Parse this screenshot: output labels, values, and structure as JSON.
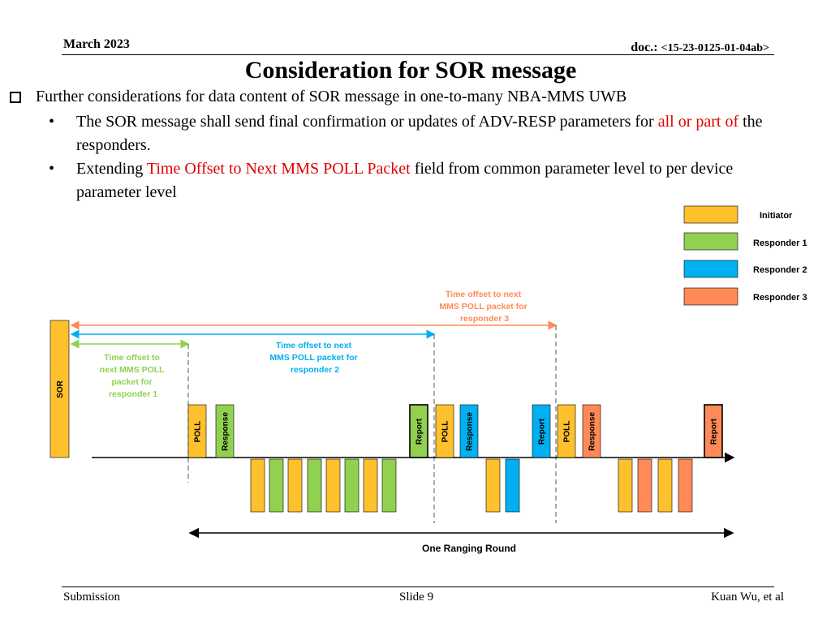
{
  "header": {
    "date": "March 2023",
    "doc_prefix": "doc.: ",
    "doc_id": "<15-23-0125-01-04ab>"
  },
  "title": "Consideration for SOR message",
  "body": {
    "point": "Further considerations for data content of SOR message in one-to-many NBA-MMS UWB",
    "sub1": {
      "pre": "The SOR message shall send final confirmation or updates of ADV-RESP parameters for ",
      "red": "all or part of",
      "post": " the responders."
    },
    "sub2": {
      "pre": "Extending ",
      "red": "Time Offset to Next MMS POLL Packet",
      "post": " field from common parameter level to per device parameter level"
    }
  },
  "diagram": {
    "legend": [
      {
        "label": "Initiator",
        "color": "#FFC02D"
      },
      {
        "label": "Responder 1",
        "color": "#92D050"
      },
      {
        "label": "Responder 2",
        "color": "#00B0F0"
      },
      {
        "label": "Responder 3",
        "color": "#FF8A57"
      }
    ],
    "packets": {
      "sor": "SOR",
      "poll": "POLL",
      "response": "Response",
      "report": "Report"
    },
    "offset1": {
      "lines": [
        "Time offset to",
        "next MMS POLL",
        "packet for",
        "responder 1"
      ],
      "color": "#92D050"
    },
    "offset2": {
      "lines": [
        "Time offset to next",
        "MMS POLL packet for",
        "responder 2"
      ],
      "color": "#00B0F0"
    },
    "offset3": {
      "lines": [
        "Time offset to next",
        "MMS POLL packet for",
        "responder 3"
      ],
      "color": "#FF8A57"
    },
    "ranging_round": "One Ranging Round"
  },
  "footer": {
    "left": "Submission",
    "center": "Slide 9",
    "right": "Kuan Wu, et al"
  }
}
